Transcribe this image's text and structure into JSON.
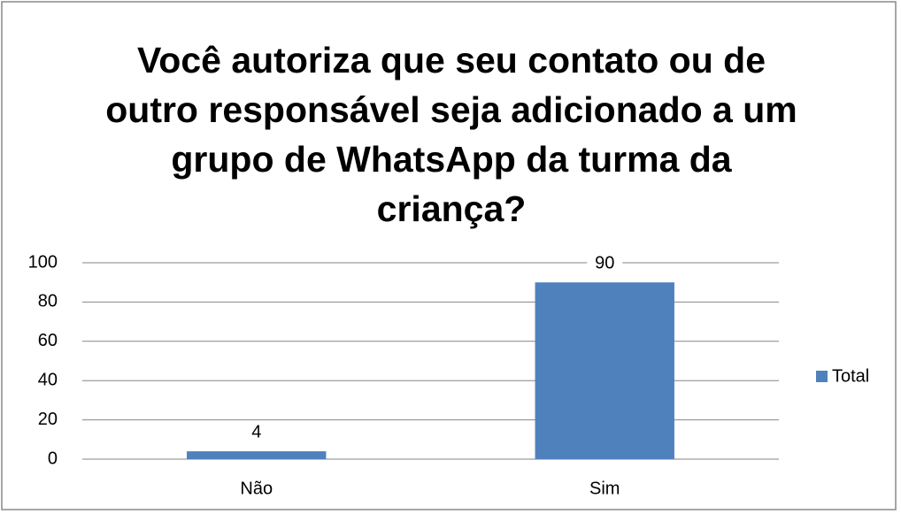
{
  "chart_data": {
    "type": "bar",
    "title": "Você autoriza que seu contato ou de outro responsável seja adicionado a um grupo de WhatsApp da turma da criança?",
    "categories": [
      "Não",
      "Sim"
    ],
    "series": [
      {
        "name": "Total",
        "color": "#4f81bd",
        "values": [
          4,
          90
        ]
      }
    ],
    "ylim": [
      0,
      100
    ],
    "yticks": [
      0,
      20,
      40,
      60,
      80,
      100
    ],
    "grid": true,
    "legend": "right",
    "data_labels": true
  }
}
